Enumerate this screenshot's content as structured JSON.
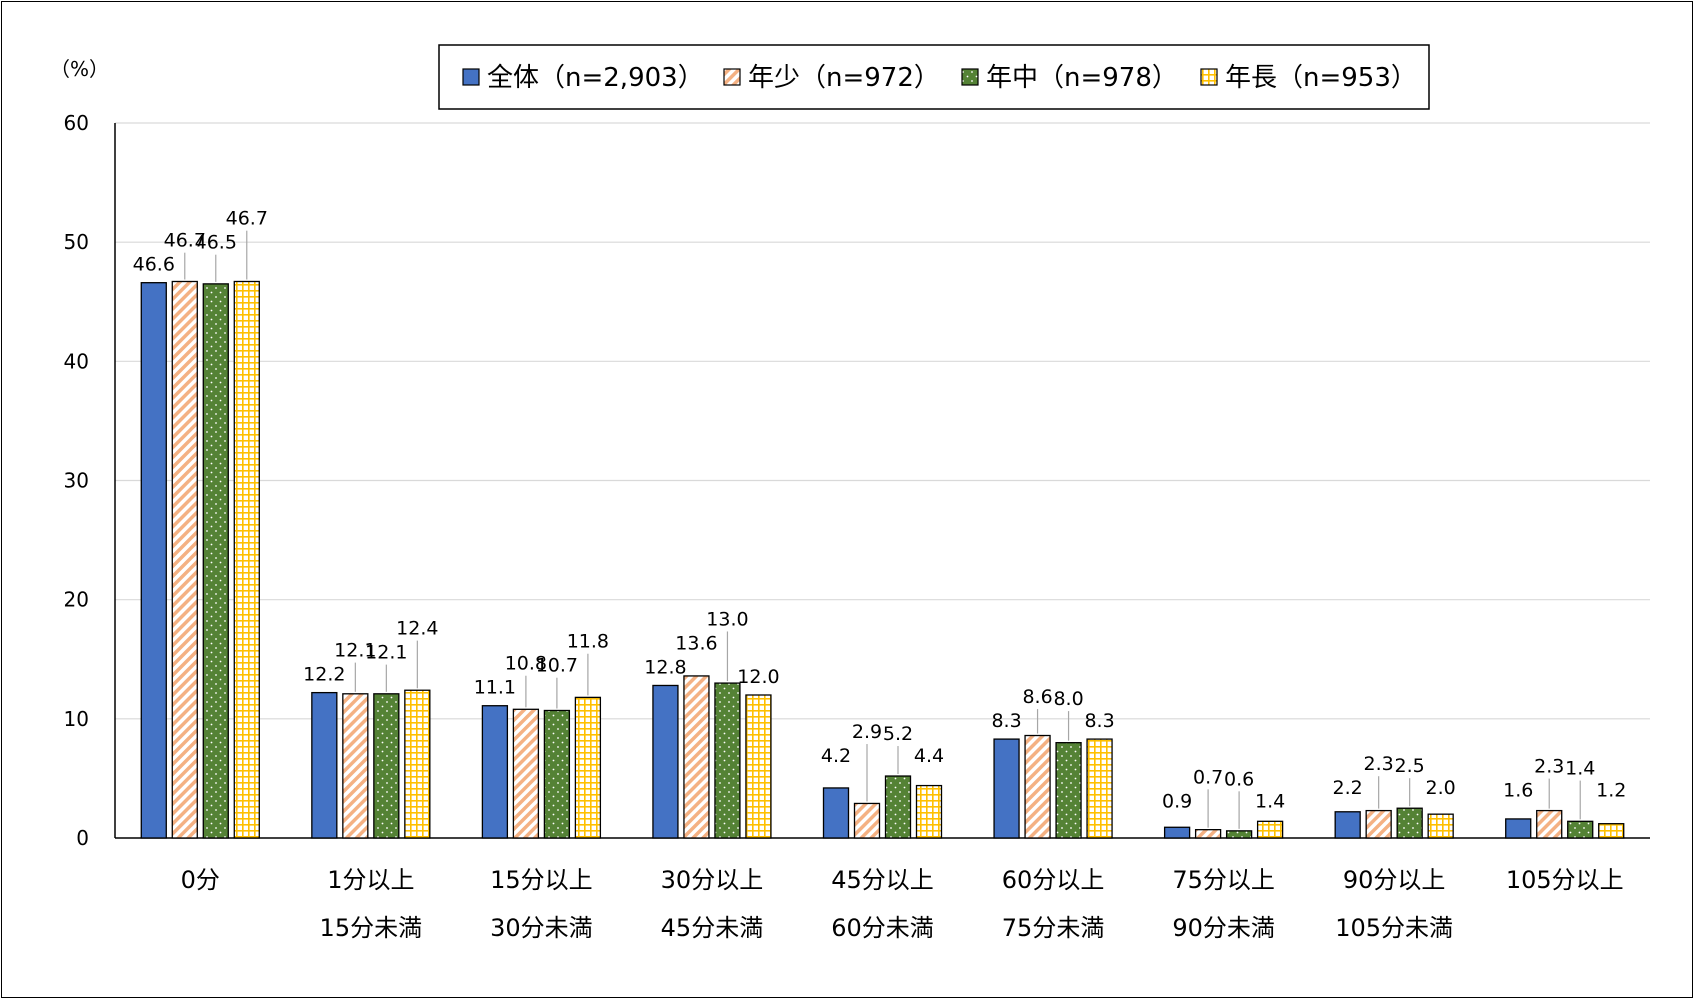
{
  "chart_data": {
    "type": "bar",
    "y_unit_label": "（%）",
    "ylim": [
      0,
      60
    ],
    "y_ticks": [
      0,
      10,
      20,
      30,
      40,
      50,
      60
    ],
    "grid": true,
    "legend_position": "top",
    "categories": [
      [
        "0分"
      ],
      [
        "1分以上",
        "15分未満"
      ],
      [
        "15分以上",
        "30分未満"
      ],
      [
        "30分以上",
        "45分未満"
      ],
      [
        "45分以上",
        "60分未満"
      ],
      [
        "60分以上",
        "75分未満"
      ],
      [
        "75分以上",
        "90分未満"
      ],
      [
        "90分以上",
        "105分未満"
      ],
      [
        "105分以上"
      ]
    ],
    "series": [
      {
        "name": "全体（n=2,903）",
        "color": "#4472C4",
        "pattern": "solid",
        "values": [
          46.6,
          12.2,
          11.1,
          12.8,
          4.2,
          8.3,
          0.9,
          2.2,
          1.6
        ]
      },
      {
        "name": "年少（n=972）",
        "color": "#F4B183",
        "pattern": "diagonal-stripes",
        "values": [
          46.7,
          12.1,
          10.8,
          13.6,
          2.9,
          8.6,
          0.7,
          2.3,
          2.3
        ]
      },
      {
        "name": "年中（n=978）",
        "color": "#548235",
        "pattern": "dots",
        "values": [
          46.5,
          12.1,
          10.7,
          13.0,
          5.2,
          8.0,
          0.6,
          2.5,
          1.4
        ]
      },
      {
        "name": "年長（n=953）",
        "color": "#FFD966",
        "pattern": "grid",
        "values": [
          46.7,
          12.4,
          11.8,
          12.0,
          4.4,
          8.3,
          1.4,
          2.0,
          1.2
        ]
      }
    ]
  }
}
